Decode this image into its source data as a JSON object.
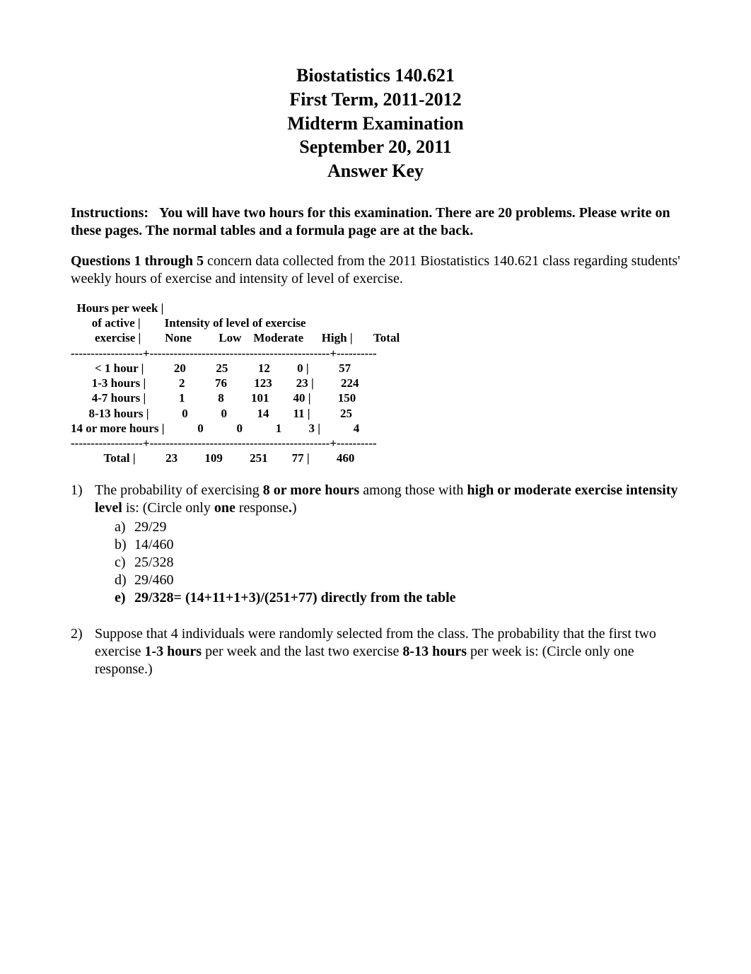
{
  "title": {
    "lines": [
      "Biostatistics 140.621",
      "First Term, 2011-2012",
      "Midterm Examination",
      "September 20, 2011",
      "Answer Key"
    ],
    "fontsize": 26,
    "fontweight": "bold",
    "align": "center"
  },
  "instructions": {
    "label": "Instructions:",
    "text": "You will have two hours for this examination.  There are 20 problems.  Please write on these pages.   The normal tables and a formula page are at the back.",
    "fontsize": 20
  },
  "section_intro": {
    "lead": "Questions 1 through 5",
    "text": " concern data collected from the 2011 Biostatistics 140.621 class regarding students' weekly hours of exercise and intensity of level of exercise.",
    "fontsize": 20
  },
  "table": {
    "type": "table",
    "monospace_block": true,
    "fontsize": 17,
    "fontweight": "bold",
    "row_header_lines": [
      "Hours per week |",
      "of active |",
      "exercise |"
    ],
    "columns_super": "Intensity of level of exercise",
    "columns": [
      "None",
      "Low",
      "Moderate",
      "High |",
      "Total"
    ],
    "rows": [
      {
        "label": "< 1 hour |",
        "cells": [
          "20",
          "25",
          "12",
          "0 |",
          "57"
        ]
      },
      {
        "label": "1-3 hours |",
        "cells": [
          "2",
          "76",
          "123",
          "23 |",
          "224"
        ]
      },
      {
        "label": "4-7 hours |",
        "cells": [
          "1",
          "8",
          "101",
          "40 |",
          "150"
        ]
      },
      {
        "label": "8-13 hours |",
        "cells": [
          "0",
          "0",
          "14",
          "11 |",
          "25"
        ]
      },
      {
        "label": "14 or more hours |",
        "cells": [
          "0",
          "0",
          "1",
          "3 |",
          "4"
        ]
      }
    ],
    "total_row": {
      "label": "Total |",
      "cells": [
        "23",
        "109",
        "251",
        "77 |",
        "460"
      ]
    },
    "sep_line": "------------------+---------------------------------------------+----------"
  },
  "q1": {
    "number": "1)",
    "pre_text": "The probability of exercising ",
    "bold1": "8 or more hours",
    "mid_text": " among those with ",
    "bold2": "high or moderate exercise intensity level",
    "post_text": " is: (Circle only ",
    "bold3": "one",
    "tail_text": " response",
    "bold_period": ".",
    "close": ")",
    "options": [
      {
        "letter": "a)",
        "text": "29/29",
        "bold": false
      },
      {
        "letter": "b)",
        "text": "14/460",
        "bold": false
      },
      {
        "letter": "c)",
        "text": "25/328",
        "bold": false
      },
      {
        "letter": "d)",
        "text": "29/460",
        "bold": false
      },
      {
        "letter": "e)",
        "text": "29/328= (14+11+1+3)/(251+77) directly from the table",
        "bold": true
      }
    ]
  },
  "q2": {
    "number": "2)",
    "pre_text": "Suppose that 4 individuals were randomly selected from the class. The probability that the first two exercise ",
    "bold1": "1-3 hours",
    "mid_text": " per week and the last two exercise ",
    "bold2": "8-13 hours",
    "post_text": " per week is: (Circle only one response.)"
  },
  "colors": {
    "background": "#ffffff",
    "text": "#000000"
  }
}
